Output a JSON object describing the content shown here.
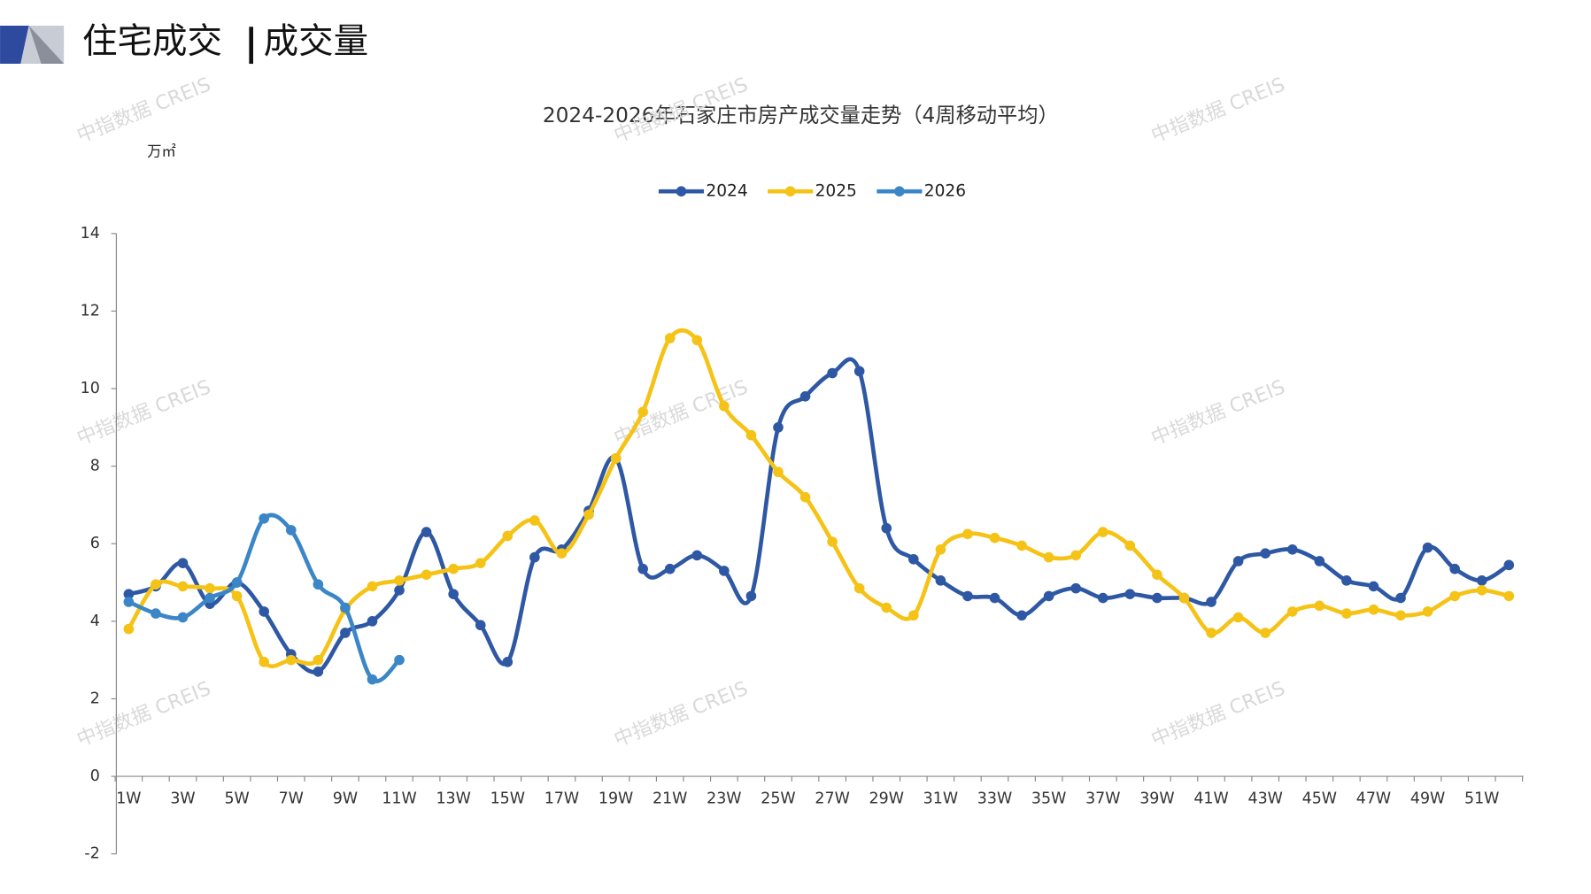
{
  "header": {
    "title_left": "住宅成交",
    "title_right": "成交量"
  },
  "watermark": "中指数据 CREIS",
  "chart_data": {
    "type": "line",
    "title": "2024-2026年石家庄市房产成交量走势（4周移动平均）",
    "y_axis_label": "万㎡",
    "categories": [
      "1W",
      null,
      "3W",
      null,
      "5W",
      null,
      "7W",
      null,
      "9W",
      null,
      "11W",
      null,
      "13W",
      null,
      "15W",
      null,
      "17W",
      null,
      "19W",
      null,
      "21W",
      null,
      "23W",
      null,
      "25W",
      null,
      "27W",
      null,
      "29W",
      null,
      "31W",
      null,
      "33W",
      null,
      "35W",
      null,
      "37W",
      null,
      "39W",
      null,
      "41W",
      null,
      "43W",
      null,
      "45W",
      null,
      "47W",
      null,
      "49W",
      null,
      "51W",
      null
    ],
    "ylim": [
      -2,
      14
    ],
    "yticks": [
      -2,
      0,
      2,
      4,
      6,
      8,
      10,
      12,
      14
    ],
    "legend": "top",
    "series": [
      {
        "name": "2024",
        "color": "#2e58a3",
        "values": [
          4.7,
          4.9,
          5.5,
          4.45,
          5.0,
          4.25,
          3.15,
          2.7,
          3.7,
          4.0,
          4.8,
          6.3,
          4.7,
          3.9,
          2.95,
          5.65,
          5.85,
          6.85,
          8.2,
          5.35,
          5.35,
          5.7,
          5.3,
          4.65,
          9.0,
          9.8,
          10.4,
          10.45,
          6.4,
          5.6,
          5.05,
          4.65,
          4.6,
          4.15,
          4.65,
          4.85,
          4.6,
          4.7,
          4.6,
          4.6,
          4.5,
          5.55,
          5.75,
          5.85,
          5.55,
          5.05,
          4.9,
          4.6,
          5.9,
          5.35,
          5.05,
          5.45
        ]
      },
      {
        "name": "2025",
        "color": "#f5c216",
        "values": [
          3.8,
          4.95,
          4.9,
          4.85,
          4.65,
          2.95,
          3.0,
          3.0,
          4.3,
          4.9,
          5.05,
          5.2,
          5.35,
          5.5,
          6.2,
          6.6,
          5.75,
          6.75,
          8.2,
          9.4,
          11.3,
          11.25,
          9.55,
          8.8,
          7.85,
          7.2,
          6.05,
          4.85,
          4.35,
          4.15,
          5.85,
          6.25,
          6.15,
          5.95,
          5.65,
          5.7,
          6.3,
          5.95,
          5.2,
          4.6,
          3.7,
          4.1,
          3.7,
          4.25,
          4.4,
          4.2,
          4.3,
          4.15,
          4.25,
          4.65,
          4.8,
          4.65
        ]
      },
      {
        "name": "2026",
        "color": "#3b86c6",
        "values": [
          4.5,
          4.2,
          4.1,
          4.6,
          5.0,
          6.65,
          6.35,
          4.95,
          4.35,
          2.5,
          3.0,
          null,
          null,
          null,
          null,
          null,
          null,
          null,
          null,
          null,
          null,
          null,
          null,
          null,
          null,
          null,
          null,
          null,
          null,
          null,
          null,
          null,
          null,
          null,
          null,
          null,
          null,
          null,
          null,
          null,
          null,
          null,
          null,
          null,
          null,
          null,
          null,
          null,
          null,
          null,
          null,
          null
        ]
      }
    ]
  }
}
